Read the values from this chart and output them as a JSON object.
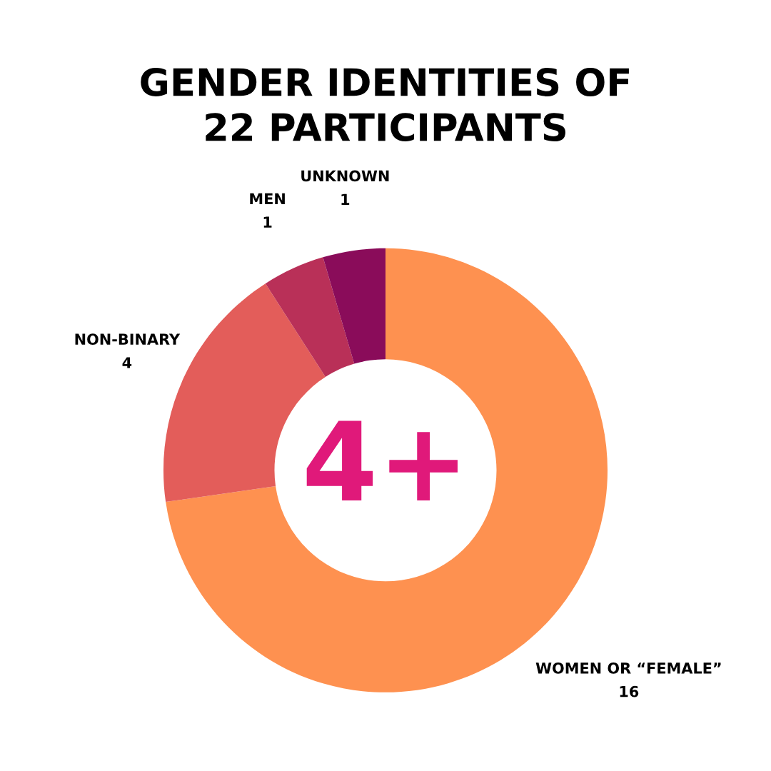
{
  "chart_data": {
    "type": "donut",
    "title": "GENDER IDENTITIES OF\n22 PARTICIPANTS",
    "categories": [
      "WOMEN OR “FEMALE”",
      "NON-BINARY",
      "MEN",
      "UNKNOWN"
    ],
    "values": [
      16,
      4,
      1,
      1
    ],
    "colors": [
      "#fe9150",
      "#e35d5a",
      "#b93058",
      "#8a0c5a"
    ],
    "data_labels": true,
    "annotations": [
      "4+"
    ]
  }
}
